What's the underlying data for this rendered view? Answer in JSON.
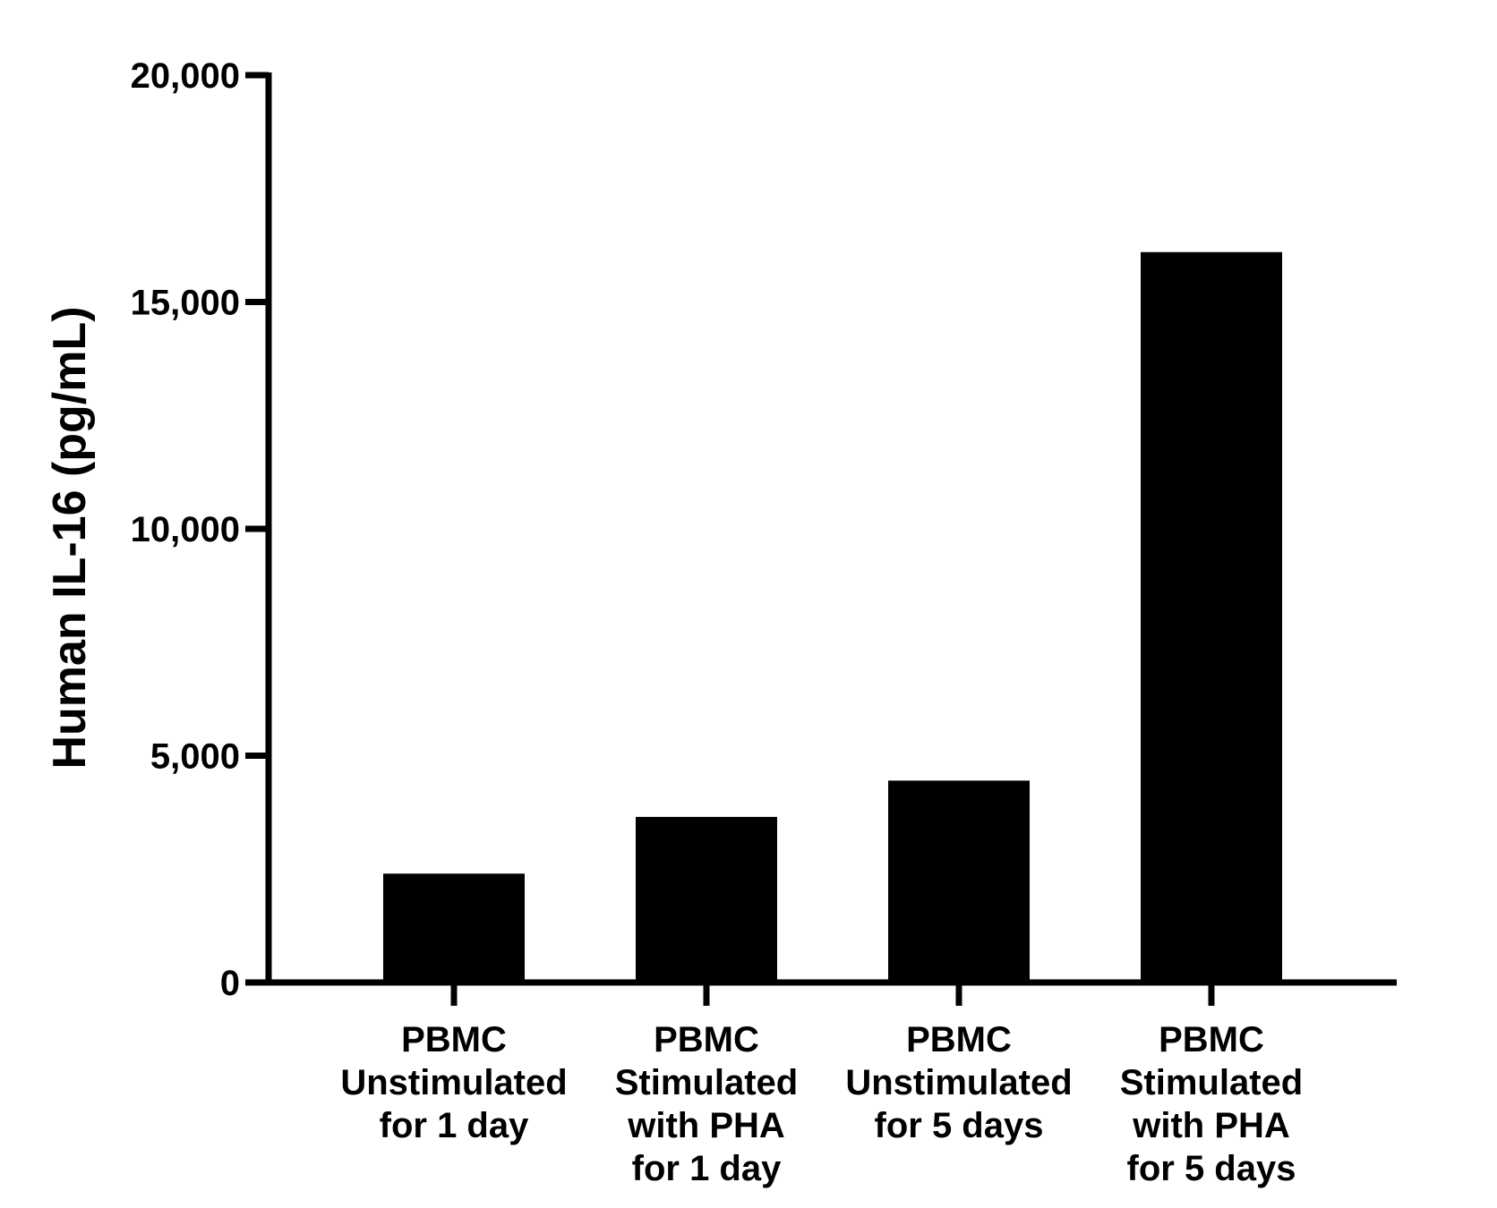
{
  "chart_data": {
    "type": "bar",
    "title": "",
    "xlabel": "",
    "ylabel": "Human IL-16 (pg/mL)",
    "categories": [
      [
        "PBMC",
        "Unstimulated",
        "for 1 day"
      ],
      [
        "PBMC",
        "Stimulated",
        "with PHA",
        "for 1 day"
      ],
      [
        "PBMC",
        "Unstimulated",
        "for 5 days"
      ],
      [
        "PBMC",
        "Stimulated",
        "with PHA",
        "for 5 days"
      ]
    ],
    "values": [
      2400,
      3650,
      4450,
      16100
    ],
    "ylim": [
      0,
      20000
    ],
    "yticks": [
      0,
      5000,
      10000,
      15000,
      20000
    ],
    "ytick_labels": [
      "0",
      "5,000",
      "10,000",
      "15,000",
      "20,000"
    ],
    "bar_color": "#000000",
    "axis_color": "#000000",
    "grid": false,
    "legend": "none"
  }
}
